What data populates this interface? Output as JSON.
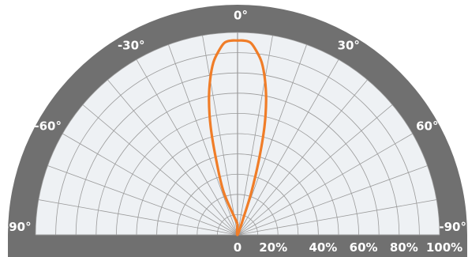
{
  "chart_data": {
    "type": "line",
    "subtype": "polar-semicircle",
    "angle_labels": [
      "-90°",
      "-60°",
      "-30°",
      "0°",
      "30°",
      "60°",
      "-90°"
    ],
    "angle_label_values": [
      -90,
      -60,
      -30,
      0,
      30,
      60,
      90
    ],
    "radial_labels": [
      "0",
      "20%",
      "40%",
      "60%",
      "80%",
      "100%"
    ],
    "radial_label_values": [
      0,
      20,
      40,
      60,
      80,
      100
    ],
    "angular_grid_step_deg": 10,
    "radial_grid_step_pct": 20,
    "rlim": [
      0,
      100
    ],
    "grid": true,
    "series": [
      {
        "color": "#f07d28",
        "points_deg_pct": [
          [
            -18,
            22
          ],
          [
            -16,
            38
          ],
          [
            -14,
            55
          ],
          [
            -12,
            68
          ],
          [
            -10,
            78
          ],
          [
            -8,
            86
          ],
          [
            -6,
            91
          ],
          [
            -4,
            95
          ],
          [
            -2,
            96
          ],
          [
            0,
            96
          ],
          [
            2,
            96
          ],
          [
            4,
            95
          ],
          [
            6,
            91
          ],
          [
            8,
            86
          ],
          [
            10,
            78
          ],
          [
            12,
            68
          ],
          [
            14,
            55
          ],
          [
            16,
            38
          ],
          [
            18,
            22
          ],
          [
            19,
            10
          ],
          [
            20,
            0
          ]
        ]
      }
    ]
  },
  "colors": {
    "page_background": "#ffffff",
    "ring": "#707070",
    "plot_background": "#eef1f4",
    "grid": "#9a9a9a",
    "label": "#ffffff",
    "curve": "#f07d28"
  },
  "labels": {
    "top": "0°",
    "upper_left": "-30°",
    "upper_right": "30°",
    "mid_left": "-60°",
    "mid_right": "60°",
    "bottom_left": "-90°",
    "bottom_right": "-90°",
    "r0": "0",
    "r20": "20%",
    "r40": "40%",
    "r60": "60%",
    "r80": "80%",
    "r100": "100%"
  }
}
